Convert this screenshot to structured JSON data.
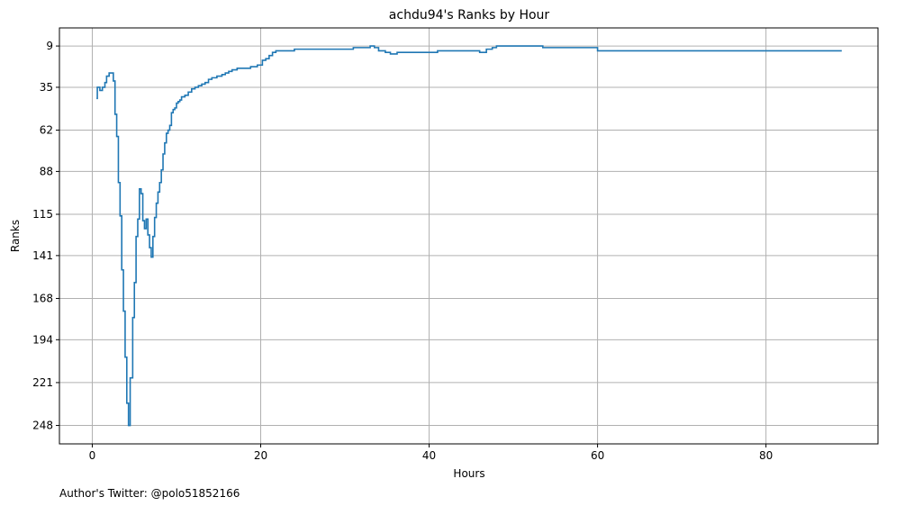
{
  "chart_data": {
    "type": "line",
    "step": true,
    "title": "achdu94's Ranks by Hour",
    "xlabel": "Hours",
    "ylabel": "Ranks",
    "y_inverted": true,
    "xlim": [
      -3.9,
      93.3
    ],
    "ylim": [
      259.6,
      -2.4
    ],
    "x_ticks": [
      0,
      20,
      40,
      60,
      80
    ],
    "y_ticks": [
      9,
      35,
      62,
      88,
      115,
      141,
      168,
      194,
      221,
      248
    ],
    "grid": true,
    "line_color": "#1f77b4",
    "series": [
      {
        "x": [
          0.5,
          0.6,
          0.9,
          1.2,
          1.5,
          1.7,
          2.0,
          2.2,
          2.5,
          2.7,
          2.9,
          3.1,
          3.3,
          3.5,
          3.7,
          3.9,
          4.1,
          4.3,
          4.5,
          4.8,
          5.0,
          5.2,
          5.4,
          5.6,
          5.8,
          6.0,
          6.2,
          6.4,
          6.6,
          6.8,
          7.0,
          7.2,
          7.4,
          7.6,
          7.8,
          8.0,
          8.2,
          8.4,
          8.6,
          8.8,
          9.0,
          9.2,
          9.4,
          9.6,
          9.8,
          10.0,
          10.2,
          10.4,
          10.6,
          11.0,
          11.4,
          11.8,
          12.2,
          12.6,
          13.0,
          13.4,
          13.8,
          14.2,
          14.8,
          15.4,
          15.8,
          16.2,
          16.6,
          17.2,
          18.0,
          18.8,
          19.6,
          20.2,
          20.6,
          21.0,
          21.4,
          21.8,
          22.2,
          24.0,
          27.0,
          31.0,
          32.5,
          33.0,
          33.5,
          34.0,
          34.8,
          35.4,
          36.2,
          36.6,
          37.0,
          38.0,
          41.0,
          45.0,
          46.0,
          46.8,
          47.5,
          48.0,
          49.0,
          53.5,
          54.0,
          60.0,
          89.0
        ],
        "values": [
          42,
          35,
          37,
          35,
          32,
          28,
          26,
          26,
          31,
          52,
          66,
          95,
          116,
          150,
          176,
          205,
          234,
          248,
          218,
          180,
          158,
          129,
          118,
          99,
          102,
          119,
          124,
          118,
          128,
          136,
          142,
          129,
          117,
          108,
          101,
          95,
          87,
          77,
          70,
          64,
          62,
          59,
          51,
          49,
          48,
          45,
          44,
          43,
          41,
          40,
          38,
          36,
          35,
          34,
          33,
          32,
          30,
          29,
          28,
          27,
          26,
          25,
          24,
          23,
          23,
          22,
          21,
          18,
          17,
          15,
          13,
          12,
          12,
          11,
          11,
          10,
          10,
          9,
          10,
          12,
          13,
          14,
          13,
          13,
          13,
          13,
          12,
          12,
          13,
          11,
          10,
          9,
          9,
          10,
          10,
          12,
          12
        ]
      }
    ]
  },
  "footer": {
    "author_text": "Author's Twitter: @polo51852166"
  }
}
